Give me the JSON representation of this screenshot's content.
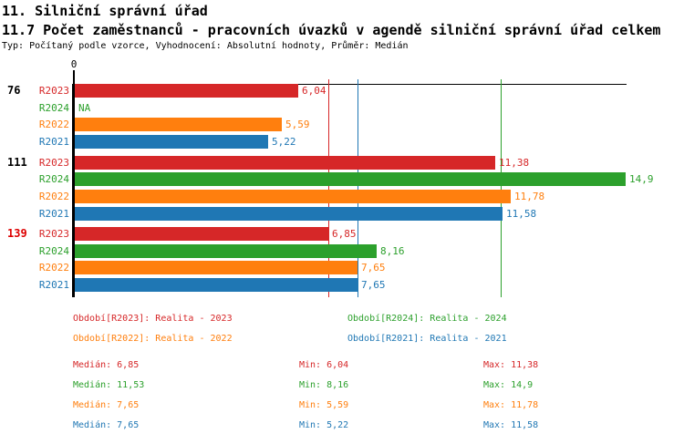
{
  "header": {
    "title1": "11. Silniční správní úřad",
    "title2": "11.7 Počet zaměstnanců - pracovních úvazků v agendě silniční správní úřad celkem",
    "subtitle": "Typ: Počítaný podle vzorce, Vyhodnocení: Absolutní hodnoty, Průměr: Medián"
  },
  "series_colors": {
    "R2023": "#d62728",
    "R2024": "#2ca02c",
    "R2022": "#ff7f0e",
    "R2021": "#1f77b4"
  },
  "axis_color": "#000000",
  "chart_data": {
    "type": "bar",
    "orientation": "horizontal",
    "title": "",
    "xlabel": "",
    "ylabel": "",
    "xlim": [
      0,
      14.97
    ],
    "x_axis_ticks": [
      "0"
    ],
    "series_order": [
      "R2023",
      "R2024",
      "R2022",
      "R2021"
    ],
    "groups": [
      {
        "label": "76",
        "label_color": "#000000",
        "bars": [
          {
            "series": "R2023",
            "value": 6.04,
            "display": "6,04"
          },
          {
            "series": "R2024",
            "value": null,
            "display": "NA"
          },
          {
            "series": "R2022",
            "value": 5.59,
            "display": "5,59"
          },
          {
            "series": "R2021",
            "value": 5.22,
            "display": "5,22"
          }
        ]
      },
      {
        "label": "111",
        "label_color": "#000000",
        "bars": [
          {
            "series": "R2023",
            "value": 11.38,
            "display": "11,38"
          },
          {
            "series": "R2024",
            "value": 14.9,
            "display": "14,9"
          },
          {
            "series": "R2022",
            "value": 11.78,
            "display": "11,78"
          },
          {
            "series": "R2021",
            "value": 11.58,
            "display": "11,58"
          }
        ]
      },
      {
        "label": "139",
        "label_color": "#dd0000",
        "bars": [
          {
            "series": "R2023",
            "value": 6.85,
            "display": "6,85"
          },
          {
            "series": "R2024",
            "value": 8.16,
            "display": "8,16"
          },
          {
            "series": "R2022",
            "value": 7.65,
            "display": "7,65"
          },
          {
            "series": "R2021",
            "value": 7.65,
            "display": "7,65"
          }
        ]
      }
    ],
    "median_lines": [
      {
        "series": "R2022",
        "value": 7.65
      },
      {
        "series": "R2021",
        "value": 7.65
      },
      {
        "series": "R2023",
        "value": 6.85
      },
      {
        "series": "R2024",
        "value": 11.53
      }
    ]
  },
  "legend": {
    "items": [
      {
        "series": "R2023",
        "text": "Období[R2023]: Realita - 2023"
      },
      {
        "series": "R2024",
        "text": "Období[R2024]: Realita - 2024"
      },
      {
        "series": "R2022",
        "text": "Období[R2022]: Realita - 2022"
      },
      {
        "series": "R2021",
        "text": "Období[R2021]: Realita - 2021"
      }
    ]
  },
  "stats": {
    "rows": [
      {
        "series": "R2023",
        "median": "Medián: 6,85",
        "min": "Min: 6,04",
        "max": "Max: 11,38"
      },
      {
        "series": "R2024",
        "median": "Medián: 11,53",
        "min": "Min: 8,16",
        "max": "Max: 14,9"
      },
      {
        "series": "R2022",
        "median": "Medián: 7,65",
        "min": "Min: 5,59",
        "max": "Max: 11,78"
      },
      {
        "series": "R2021",
        "median": "Medián: 7,65",
        "min": "Min: 5,22",
        "max": "Max: 11,58"
      }
    ]
  }
}
